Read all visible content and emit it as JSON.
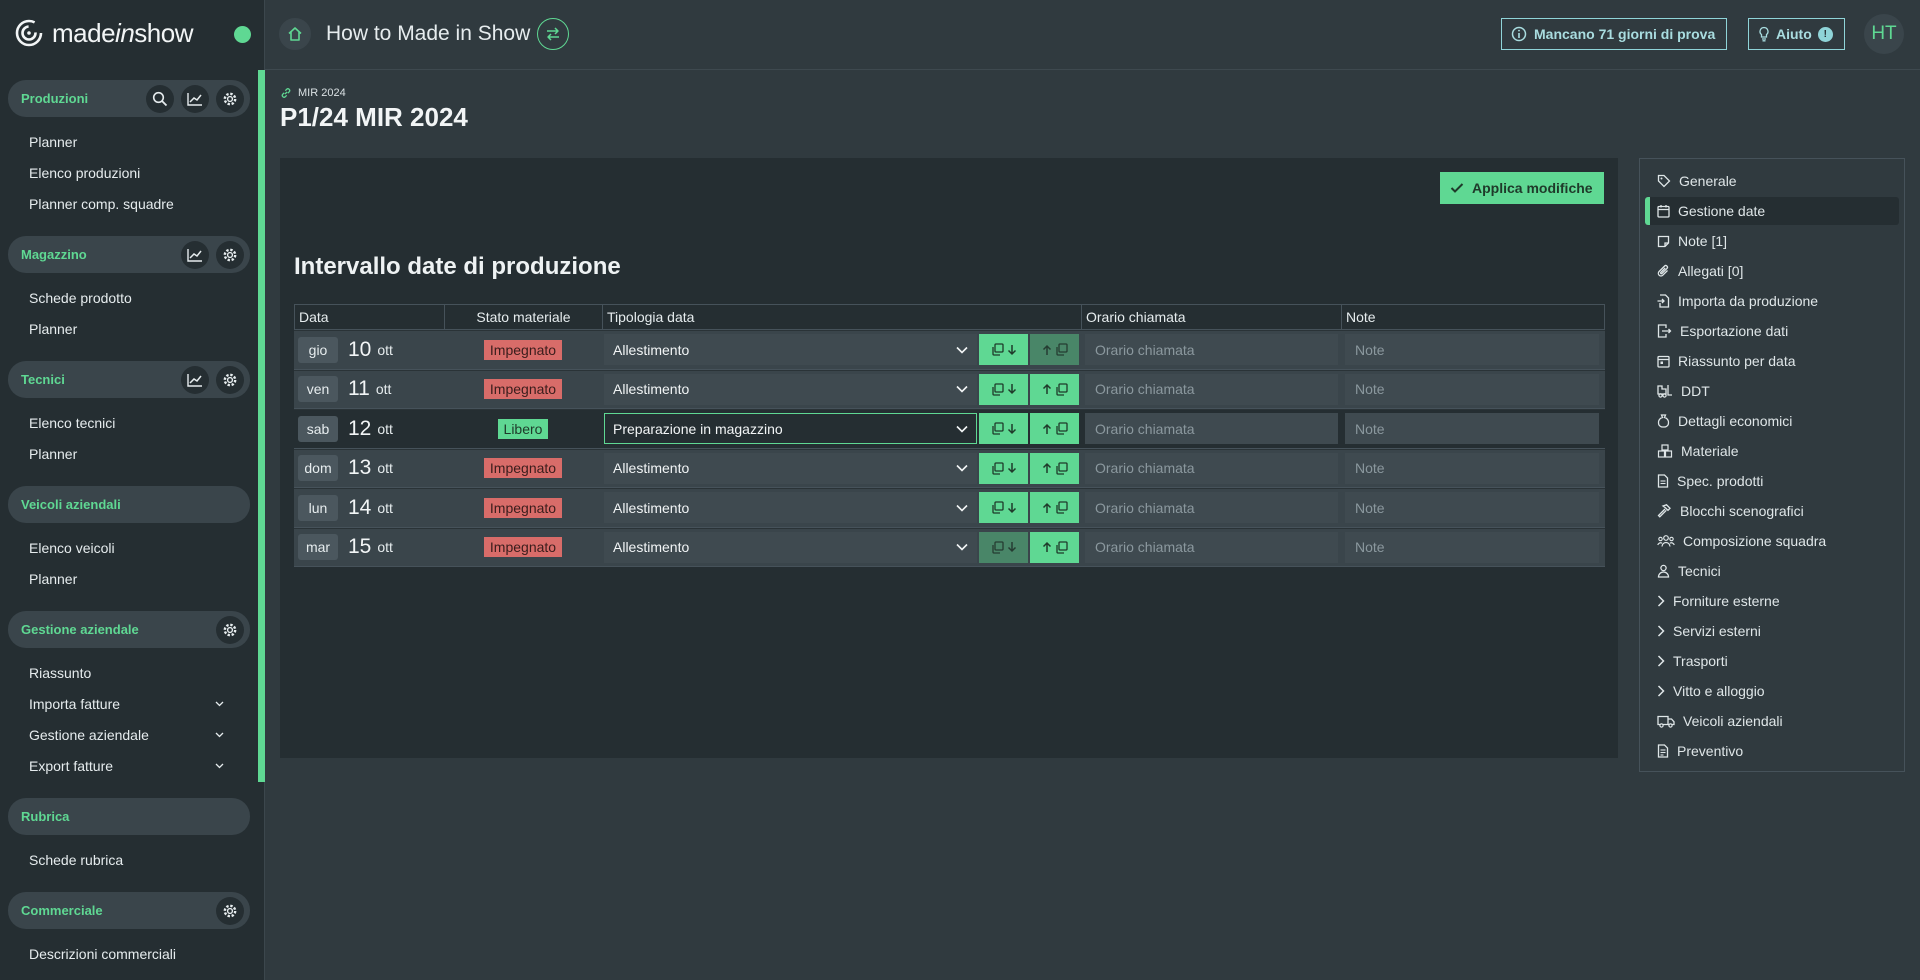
{
  "app": {
    "logo_text_a": "made",
    "logo_text_b": "in",
    "logo_text_c": "show",
    "page_title": "How to Made in Show",
    "trial_label": "Mancano 71 giorni di prova",
    "help_label": "Aiuto",
    "help_badge": "!",
    "avatar_initials": "HT",
    "accent_color": "#5fd893",
    "danger_color": "#d86c69"
  },
  "sidebar": {
    "groups": [
      {
        "title": "Produzioni",
        "items": [
          "Planner",
          "Elenco produzioni",
          "Planner comp. squadre"
        ]
      },
      {
        "title": "Magazzino",
        "items": [
          "Schede prodotto",
          "Planner"
        ]
      },
      {
        "title": "Tecnici",
        "items": [
          "Elenco tecnici",
          "Planner"
        ]
      },
      {
        "title": "Veicoli aziendali",
        "items": [
          "Elenco veicoli",
          "Planner"
        ]
      },
      {
        "title": "Gestione aziendale",
        "items": [
          "Riassunto",
          "Importa fatture",
          "Gestione aziendale",
          "Export fatture"
        ]
      },
      {
        "title": "Rubrica",
        "items": [
          "Schede rubrica"
        ]
      },
      {
        "title": "Commerciale",
        "items": [
          "Descrizioni commerciali"
        ]
      }
    ]
  },
  "breadcrumb": {
    "parent": "MIR 2024"
  },
  "main": {
    "title": "P1/24 MIR 2024",
    "apply_label": "Applica modifiche",
    "section_title": "Intervallo date di produzione",
    "columns": [
      "Data",
      "Stato materiale",
      "Tipologia data",
      "Orario chiamata",
      "Note"
    ],
    "time_placeholder": "Orario chiamata",
    "note_placeholder": "Note",
    "rows": [
      {
        "day": "gio",
        "num": "10",
        "month": "ott",
        "status": "Impegnato",
        "type": "Allestimento"
      },
      {
        "day": "ven",
        "num": "11",
        "month": "ott",
        "status": "Impegnato",
        "type": "Allestimento"
      },
      {
        "day": "sab",
        "num": "12",
        "month": "ott",
        "status": "Libero",
        "type": "Preparazione in magazzino"
      },
      {
        "day": "dom",
        "num": "13",
        "month": "ott",
        "status": "Impegnato",
        "type": "Allestimento"
      },
      {
        "day": "lun",
        "num": "14",
        "month": "ott",
        "status": "Impegnato",
        "type": "Allestimento"
      },
      {
        "day": "mar",
        "num": "15",
        "month": "ott",
        "status": "Impegnato",
        "type": "Allestimento"
      }
    ]
  },
  "right_menu": {
    "items": [
      {
        "label": "Generale",
        "icon": "tag-icon"
      },
      {
        "label": "Gestione date",
        "icon": "calendar-icon",
        "active": true
      },
      {
        "label": "Note [1]",
        "icon": "note-icon"
      },
      {
        "label": "Allegati [0]",
        "icon": "paperclip-icon"
      },
      {
        "label": "Importa da produzione",
        "icon": "file-import-icon"
      },
      {
        "label": "Esportazione dati",
        "icon": "file-export-icon"
      },
      {
        "label": "Riassunto per data",
        "icon": "calendar-summary-icon"
      },
      {
        "label": "DDT",
        "icon": "forklift-icon"
      },
      {
        "label": "Dettagli economici",
        "icon": "money-bag-icon"
      },
      {
        "label": "Materiale",
        "icon": "boxes-icon"
      },
      {
        "label": "Spec. prodotti",
        "icon": "document-icon"
      },
      {
        "label": "Blocchi scenografici",
        "icon": "hammer-icon"
      },
      {
        "label": "Composizione squadra",
        "icon": "team-icon"
      },
      {
        "label": "Tecnici",
        "icon": "user-icon"
      },
      {
        "label": "Forniture esterne",
        "icon": "chevron-right-icon"
      },
      {
        "label": "Servizi esterni",
        "icon": "chevron-right-icon"
      },
      {
        "label": "Trasporti",
        "icon": "chevron-right-icon"
      },
      {
        "label": "Vitto e alloggio",
        "icon": "chevron-right-icon"
      },
      {
        "label": "Veicoli aziendali",
        "icon": "truck-icon"
      },
      {
        "label": "Preventivo",
        "icon": "invoice-icon"
      }
    ]
  }
}
